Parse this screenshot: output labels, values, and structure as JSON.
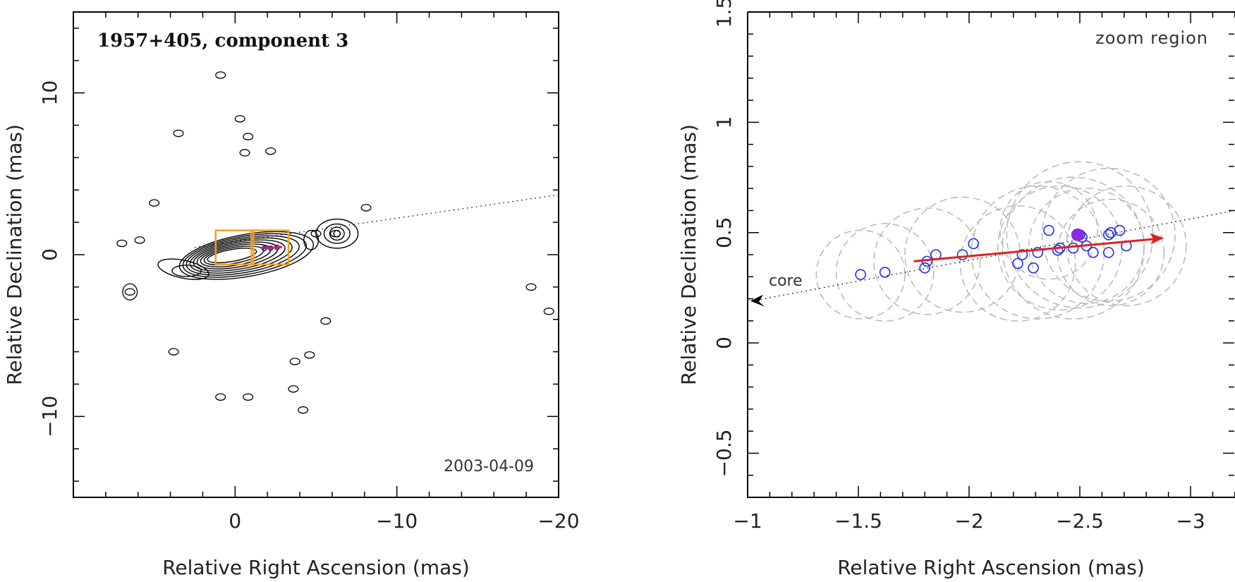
{
  "chart_data": [
    {
      "type": "scatter",
      "subtype": "contour-map",
      "title": "1957+405, component 3",
      "date": "2003-04-09",
      "xlabel": "Relative Right Ascension (mas)",
      "ylabel": "Relative Declination (mas)",
      "xlim": [
        10,
        -20
      ],
      "ylim": [
        -15,
        15
      ],
      "x_ticks": [
        0,
        -10,
        -20
      ],
      "x_tick_labels": [
        "0",
        "−10",
        "−20"
      ],
      "y_ticks": [
        10,
        0,
        -10
      ],
      "y_tick_labels": [
        "10",
        "0",
        "−10"
      ],
      "core_contour_levels": 9,
      "core_center": [
        0,
        0
      ],
      "jet_axis": {
        "from": [
          2.5,
          0.45
        ],
        "to": [
          -20,
          3.7
        ],
        "style": "dotted"
      },
      "zoom_box": {
        "x_range": [
          -1,
          -3.3
        ],
        "y_range": [
          -0.6,
          1.5
        ],
        "color": "#F0A020"
      },
      "component_positions": [
        {
          "x": -1.8,
          "y": 0.38
        },
        {
          "x": -2.2,
          "y": 0.4
        },
        {
          "x": -2.6,
          "y": 0.45
        }
      ],
      "isolated_contours": [
        {
          "x": 0.9,
          "y": 11.1
        },
        {
          "x": -0.3,
          "y": 8.4
        },
        {
          "x": 3.5,
          "y": 7.5
        },
        {
          "x": -0.8,
          "y": 7.3
        },
        {
          "x": -0.6,
          "y": 6.3
        },
        {
          "x": -2.2,
          "y": 6.4
        },
        {
          "x": 5.0,
          "y": 3.2
        },
        {
          "x": -8.1,
          "y": 2.9
        },
        {
          "x": -5.0,
          "y": 1.3
        },
        {
          "x": -6.2,
          "y": 1.3
        },
        {
          "x": 7.0,
          "y": 0.7
        },
        {
          "x": 5.9,
          "y": 0.9
        },
        {
          "x": 6.5,
          "y": -2.3
        },
        {
          "x": -18.3,
          "y": -2.0
        },
        {
          "x": -19.4,
          "y": -3.5
        },
        {
          "x": -5.6,
          "y": -4.1
        },
        {
          "x": 3.8,
          "y": -6.0
        },
        {
          "x": -3.7,
          "y": -6.6
        },
        {
          "x": -4.6,
          "y": -6.2
        },
        {
          "x": -3.6,
          "y": -8.3
        },
        {
          "x": 0.9,
          "y": -8.8
        },
        {
          "x": -0.8,
          "y": -8.8
        },
        {
          "x": -4.2,
          "y": -9.6
        }
      ]
    },
    {
      "type": "scatter",
      "title": "zoom region",
      "xlabel": "Relative Right Ascension (mas)",
      "ylabel": "Relative Declination (mas)",
      "xlim": [
        -1,
        -3.2
      ],
      "ylim": [
        -0.7,
        1.5
      ],
      "x_ticks": [
        -1,
        -1.5,
        -2,
        -2.5,
        -3
      ],
      "x_tick_labels": [
        "−1",
        "−1.5",
        "−2",
        "−2.5",
        "−3"
      ],
      "y_ticks": [
        -0.5,
        0,
        0.5,
        1,
        1.5
      ],
      "y_tick_labels": [
        "−0.5",
        "0",
        "0.5",
        "1",
        "1.5"
      ],
      "core_label": "core",
      "core_direction_line": {
        "from": [
          -3.2,
          0.6
        ],
        "to": [
          -1.0,
          0.19
        ],
        "style": "dotted"
      },
      "motion_vector": {
        "from": [
          -1.75,
          0.37
        ],
        "to": [
          -2.88,
          0.475
        ],
        "color": "#E02020"
      },
      "reference_epoch_point": {
        "x": -2.49,
        "y": 0.49,
        "color": "#8A2BE2"
      },
      "points": [
        {
          "x": -1.51,
          "y": 0.31
        },
        {
          "x": -1.62,
          "y": 0.32
        },
        {
          "x": -1.8,
          "y": 0.34
        },
        {
          "x": -1.81,
          "y": 0.37
        },
        {
          "x": -1.85,
          "y": 0.4
        },
        {
          "x": -1.97,
          "y": 0.4
        },
        {
          "x": -2.02,
          "y": 0.45
        },
        {
          "x": -2.22,
          "y": 0.36
        },
        {
          "x": -2.24,
          "y": 0.4
        },
        {
          "x": -2.29,
          "y": 0.34
        },
        {
          "x": -2.31,
          "y": 0.41
        },
        {
          "x": -2.36,
          "y": 0.51
        },
        {
          "x": -2.4,
          "y": 0.42
        },
        {
          "x": -2.41,
          "y": 0.43
        },
        {
          "x": -2.47,
          "y": 0.43
        },
        {
          "x": -2.5,
          "y": 0.49
        },
        {
          "x": -2.51,
          "y": 0.48
        },
        {
          "x": -2.53,
          "y": 0.44
        },
        {
          "x": -2.56,
          "y": 0.41
        },
        {
          "x": -2.63,
          "y": 0.49
        },
        {
          "x": -2.63,
          "y": 0.41
        },
        {
          "x": -2.64,
          "y": 0.5
        },
        {
          "x": -2.68,
          "y": 0.51
        },
        {
          "x": -2.71,
          "y": 0.44
        }
      ],
      "component_sizes": [
        {
          "x": -1.51,
          "y": 0.31,
          "r": 0.2
        },
        {
          "x": -1.62,
          "y": 0.32,
          "r": 0.22
        },
        {
          "x": -1.81,
          "y": 0.37,
          "r": 0.24
        },
        {
          "x": -1.97,
          "y": 0.4,
          "r": 0.26
        },
        {
          "x": -2.22,
          "y": 0.36,
          "r": 0.26
        },
        {
          "x": -2.31,
          "y": 0.41,
          "r": 0.3
        },
        {
          "x": -2.41,
          "y": 0.43,
          "r": 0.28
        },
        {
          "x": -2.5,
          "y": 0.49,
          "r": 0.33
        },
        {
          "x": -2.53,
          "y": 0.44,
          "r": 0.26
        },
        {
          "x": -2.63,
          "y": 0.49,
          "r": 0.3
        },
        {
          "x": -2.64,
          "y": 0.41,
          "r": 0.24
        },
        {
          "x": -2.71,
          "y": 0.44,
          "r": 0.27
        },
        {
          "x": -2.36,
          "y": 0.51,
          "r": 0.22
        },
        {
          "x": -2.47,
          "y": 0.43,
          "r": 0.32
        }
      ]
    }
  ],
  "colors": {
    "contour": "#000000",
    "jet_points": "#1F2FE0",
    "motion_vector": "#E02020",
    "reference_point": "#8A2BE2",
    "component_size_circles": "#B8B8B8",
    "zoom_box": "#F0A020"
  }
}
